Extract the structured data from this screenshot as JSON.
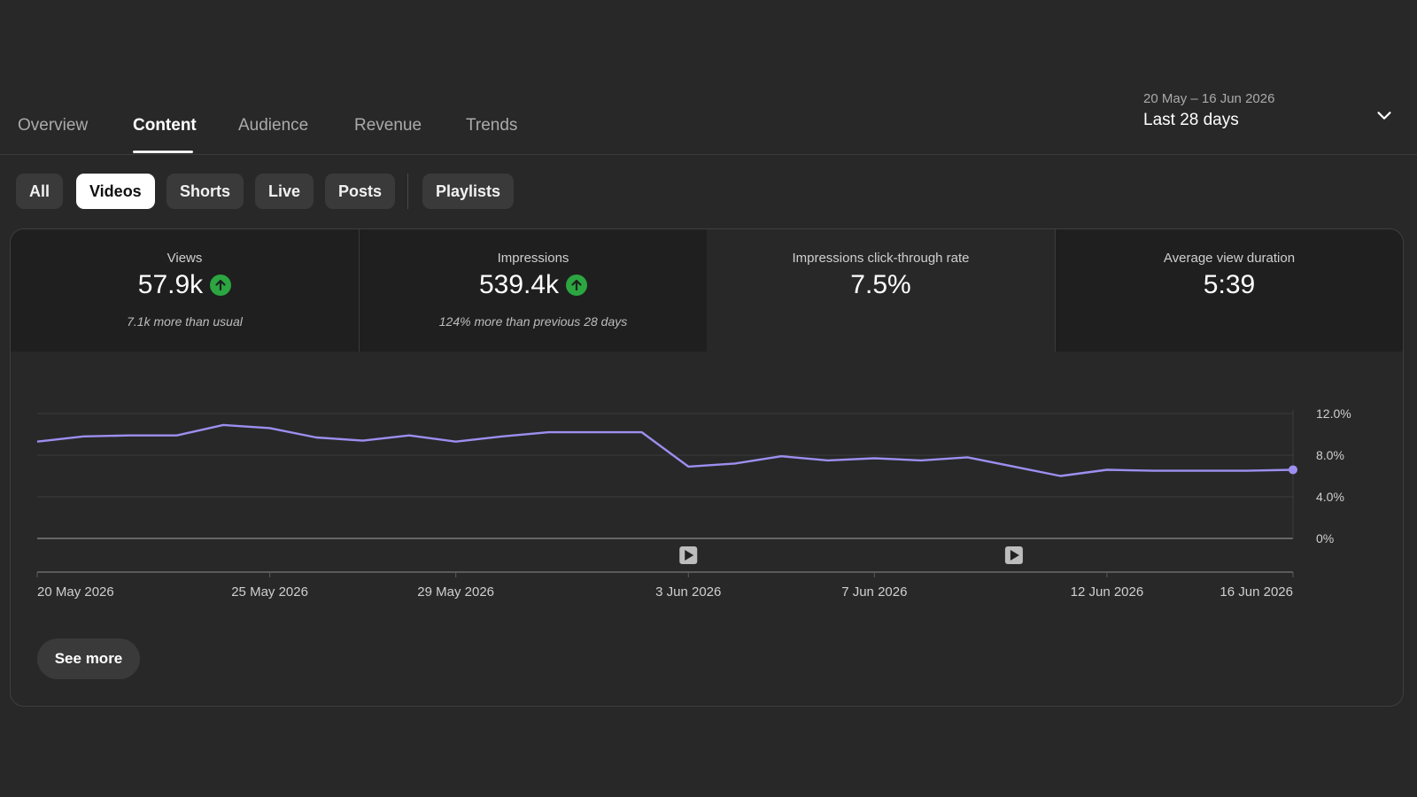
{
  "tabs": [
    {
      "label": "Overview"
    },
    {
      "label": "Content"
    },
    {
      "label": "Audience"
    },
    {
      "label": "Revenue"
    },
    {
      "label": "Trends"
    }
  ],
  "date_range": {
    "range": "20 May – 16 Jun 2026",
    "period": "Last 28 days"
  },
  "chips": [
    {
      "label": "All"
    },
    {
      "label": "Videos"
    },
    {
      "label": "Shorts"
    },
    {
      "label": "Live"
    },
    {
      "label": "Posts"
    },
    {
      "label": "Playlists"
    }
  ],
  "metrics": [
    {
      "label": "Views",
      "value": "57.9k",
      "note": "7.1k more than usual",
      "trend": "up"
    },
    {
      "label": "Impressions",
      "value": "539.4k",
      "note": "124% more than previous 28 days",
      "trend": "up"
    },
    {
      "label": "Impressions click-through rate",
      "value": "7.5%",
      "note": "",
      "trend": ""
    },
    {
      "label": "Average view duration",
      "value": "5:39",
      "note": "",
      "trend": ""
    }
  ],
  "see_more_label": "See more",
  "colors": {
    "line": "#9c8ff0",
    "up": "#2ba640"
  },
  "chart_data": {
    "type": "line",
    "title": "",
    "xlabel": "",
    "ylabel": "",
    "x": [
      "20 May 2026",
      "21 May 2026",
      "22 May 2026",
      "23 May 2026",
      "24 May 2026",
      "25 May 2026",
      "26 May 2026",
      "27 May 2026",
      "28 May 2026",
      "29 May 2026",
      "30 May 2026",
      "31 May 2026",
      "1 Jun 2026",
      "2 Jun 2026",
      "3 Jun 2026",
      "4 Jun 2026",
      "5 Jun 2026",
      "6 Jun 2026",
      "7 Jun 2026",
      "8 Jun 2026",
      "9 Jun 2026",
      "10 Jun 2026",
      "11 Jun 2026",
      "12 Jun 2026",
      "13 Jun 2026",
      "14 Jun 2026",
      "15 Jun 2026",
      "16 Jun 2026"
    ],
    "values": [
      9.3,
      9.8,
      9.9,
      9.9,
      10.9,
      10.6,
      9.7,
      9.4,
      9.9,
      9.3,
      9.8,
      10.2,
      10.2,
      10.2,
      6.9,
      7.2,
      7.9,
      7.5,
      7.7,
      7.5,
      7.8,
      6.9,
      6.0,
      6.6,
      6.5,
      6.5,
      6.5,
      6.6
    ],
    "ylim": [
      0,
      12
    ],
    "yticks": [
      "0%",
      "4.0%",
      "8.0%",
      "12.0%"
    ],
    "xtick_labels": [
      {
        "index": 0,
        "label": "20 May 2026"
      },
      {
        "index": 5,
        "label": "25 May 2026"
      },
      {
        "index": 9,
        "label": "29 May 2026"
      },
      {
        "index": 14,
        "label": "3 Jun 2026"
      },
      {
        "index": 18,
        "label": "7 Jun 2026"
      },
      {
        "index": 23,
        "label": "12 Jun 2026"
      },
      {
        "index": 27,
        "label": "16 Jun 2026"
      }
    ],
    "video_markers": [
      14,
      21
    ],
    "grid": true,
    "y_axis_position": "right"
  }
}
